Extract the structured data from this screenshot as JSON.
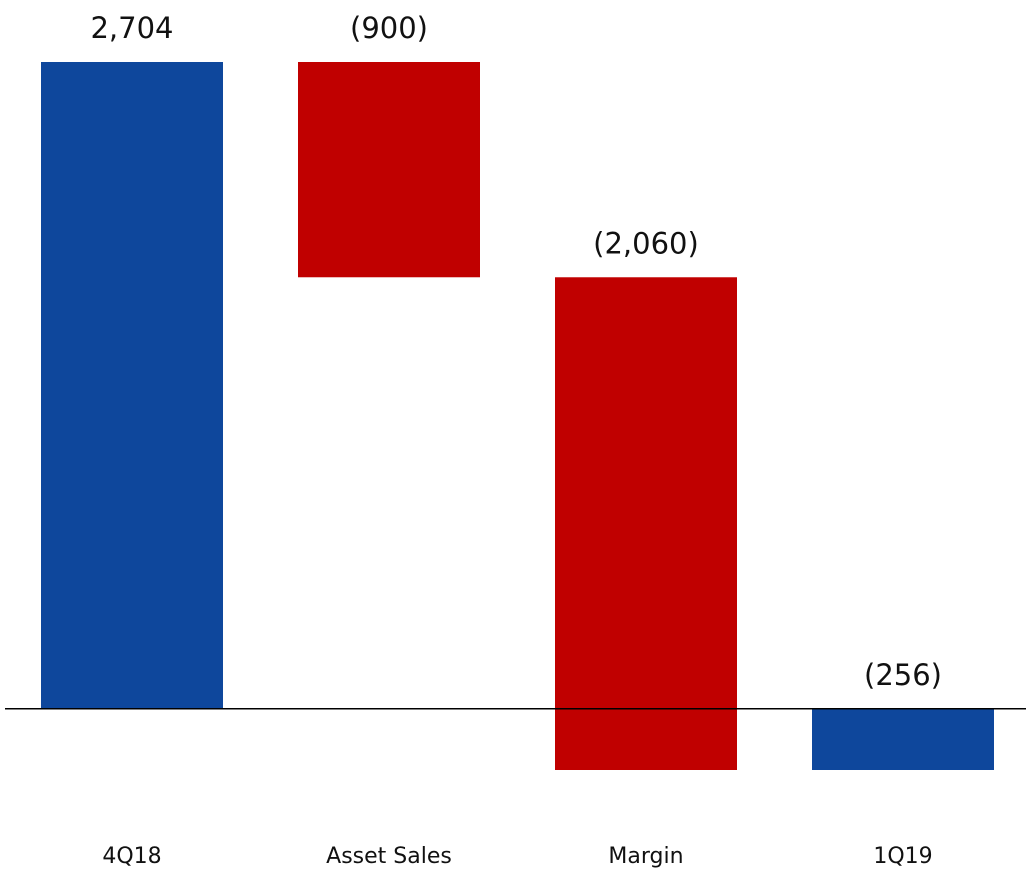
{
  "chart_data": {
    "type": "waterfall",
    "categories": [
      "4Q18",
      "Asset Sales",
      "Margin",
      "1Q19"
    ],
    "values": [
      2704,
      -900,
      -2060,
      -256
    ],
    "value_labels": [
      "2,704",
      "(900)",
      "(2,060)",
      "(256)"
    ],
    "measures": [
      "absolute",
      "relative",
      "relative",
      "total"
    ],
    "colors": [
      "#0e479c",
      "#c00000",
      "#c00000",
      "#0e479c"
    ]
  }
}
